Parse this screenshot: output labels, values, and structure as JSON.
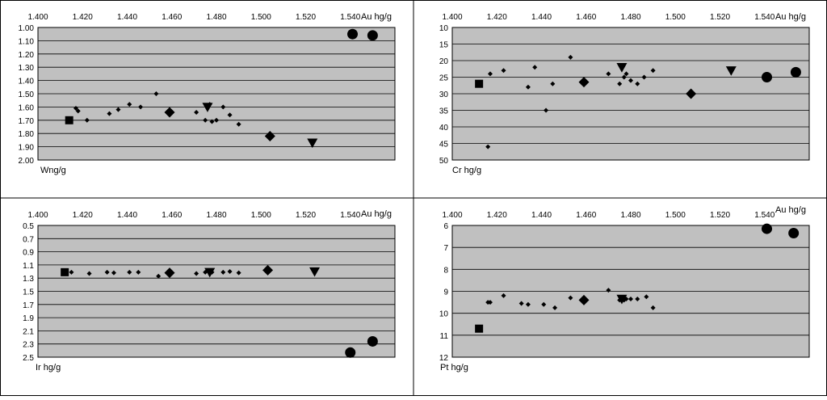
{
  "chart_data": [
    {
      "type": "scatter",
      "xlabel": "Au hg/g",
      "ylabel": "Wng/g",
      "xlim": [
        1.4,
        1.56
      ],
      "ylim": [
        1.0,
        2.0
      ],
      "y_reversed": true,
      "x_ticks": [
        "1.400",
        "1.420",
        "1.440",
        "1.460",
        "1.480",
        "1.500",
        "1.520",
        "1.540"
      ],
      "y_ticks": [
        "1.00",
        "1.10",
        "1.20",
        "1.30",
        "1.40",
        "1.50",
        "1.60",
        "1.70",
        "1.80",
        "1.90",
        "2.00"
      ],
      "grid": true,
      "series": [
        {
          "marker": "diamond-small",
          "points": [
            [
              1.417,
              1.61
            ],
            [
              1.418,
              1.63
            ],
            [
              1.422,
              1.7
            ],
            [
              1.432,
              1.65
            ],
            [
              1.436,
              1.62
            ],
            [
              1.441,
              1.58
            ],
            [
              1.446,
              1.6
            ],
            [
              1.453,
              1.5
            ],
            [
              1.471,
              1.64
            ],
            [
              1.475,
              1.7
            ],
            [
              1.477,
              1.58
            ],
            [
              1.478,
              1.71
            ],
            [
              1.48,
              1.7
            ],
            [
              1.483,
              1.6
            ],
            [
              1.486,
              1.66
            ],
            [
              1.49,
              1.73
            ]
          ]
        },
        {
          "marker": "square",
          "points": [
            [
              1.414,
              1.7
            ]
          ]
        },
        {
          "marker": "diamond-large",
          "points": [
            [
              1.459,
              1.64
            ],
            [
              1.504,
              1.82
            ]
          ]
        },
        {
          "marker": "triangle-down",
          "points": [
            [
              1.476,
              1.6
            ],
            [
              1.523,
              1.87
            ]
          ]
        },
        {
          "marker": "circle",
          "points": [
            [
              1.541,
              1.05
            ],
            [
              1.55,
              1.06
            ]
          ]
        }
      ]
    },
    {
      "type": "scatter",
      "xlabel": "Au hg/g",
      "ylabel": "Cr hg/g",
      "xlim": [
        1.4,
        1.56
      ],
      "ylim": [
        10,
        50
      ],
      "y_reversed": true,
      "x_ticks": [
        "1.400",
        "1.420",
        "1.440",
        "1.460",
        "1.480",
        "1.500",
        "1.520",
        "1.540"
      ],
      "y_ticks": [
        "10",
        "15",
        "20",
        "25",
        "30",
        "35",
        "40",
        "45",
        "50"
      ],
      "grid": true,
      "series": [
        {
          "marker": "diamond-small",
          "points": [
            [
              1.416,
              46
            ],
            [
              1.417,
              24
            ],
            [
              1.423,
              23
            ],
            [
              1.434,
              28
            ],
            [
              1.437,
              22
            ],
            [
              1.442,
              35
            ],
            [
              1.445,
              27
            ],
            [
              1.453,
              19
            ],
            [
              1.47,
              24
            ],
            [
              1.475,
              27
            ],
            [
              1.477,
              25
            ],
            [
              1.478,
              24
            ],
            [
              1.48,
              26
            ],
            [
              1.483,
              27
            ],
            [
              1.486,
              25
            ],
            [
              1.49,
              23
            ]
          ]
        },
        {
          "marker": "square",
          "points": [
            [
              1.412,
              27
            ]
          ]
        },
        {
          "marker": "diamond-large",
          "points": [
            [
              1.459,
              26.5
            ],
            [
              1.507,
              30
            ]
          ]
        },
        {
          "marker": "triangle-down",
          "points": [
            [
              1.476,
              22
            ],
            [
              1.525,
              23
            ]
          ]
        },
        {
          "marker": "circle",
          "points": [
            [
              1.541,
              25
            ],
            [
              1.554,
              23.5
            ]
          ]
        }
      ]
    },
    {
      "type": "scatter",
      "xlabel": "Au hg/g",
      "ylabel": "Ir hg/g",
      "xlim": [
        1.4,
        1.56
      ],
      "ylim": [
        0.5,
        2.5
      ],
      "y_reversed": true,
      "x_ticks": [
        "1.400",
        "1.420",
        "1.440",
        "1.460",
        "1.480",
        "1.500",
        "1.520",
        "1.540"
      ],
      "y_ticks": [
        "0.5",
        "0.7",
        "0.9",
        "1.1",
        "1.3",
        "1.5",
        "1.7",
        "1.9",
        "2.1",
        "2.3",
        "2.5"
      ],
      "grid": true,
      "series": [
        {
          "marker": "diamond-small",
          "points": [
            [
              1.415,
              1.21
            ],
            [
              1.423,
              1.23
            ],
            [
              1.431,
              1.21
            ],
            [
              1.434,
              1.22
            ],
            [
              1.441,
              1.21
            ],
            [
              1.445,
              1.21
            ],
            [
              1.454,
              1.27
            ],
            [
              1.471,
              1.23
            ],
            [
              1.475,
              1.21
            ],
            [
              1.477,
              1.22
            ],
            [
              1.478,
              1.21
            ],
            [
              1.483,
              1.21
            ],
            [
              1.486,
              1.2
            ],
            [
              1.49,
              1.22
            ]
          ]
        },
        {
          "marker": "square",
          "points": [
            [
              1.412,
              1.21
            ]
          ]
        },
        {
          "marker": "diamond-large",
          "points": [
            [
              1.459,
              1.22
            ],
            [
              1.503,
              1.18
            ]
          ]
        },
        {
          "marker": "triangle-down",
          "points": [
            [
              1.477,
              1.21
            ],
            [
              1.524,
              1.2
            ]
          ]
        },
        {
          "marker": "circle",
          "points": [
            [
              1.54,
              2.43
            ],
            [
              1.55,
              2.26
            ]
          ]
        }
      ]
    },
    {
      "type": "scatter",
      "xlabel": "Au hg/g",
      "ylabel": "Pt hg/g",
      "xlim": [
        1.4,
        1.56
      ],
      "ylim": [
        6,
        12
      ],
      "y_reversed": true,
      "x_ticks": [
        "1.400",
        "1.420",
        "1.440",
        "1.460",
        "1.480",
        "1.500",
        "1.520",
        "1.540"
      ],
      "y_ticks": [
        "6",
        "7",
        "8",
        "9",
        "10",
        "11",
        "12"
      ],
      "grid": true,
      "series": [
        {
          "marker": "diamond-small",
          "points": [
            [
              1.416,
              9.5
            ],
            [
              1.417,
              9.5
            ],
            [
              1.423,
              9.2
            ],
            [
              1.431,
              9.55
            ],
            [
              1.434,
              9.6
            ],
            [
              1.441,
              9.6
            ],
            [
              1.446,
              9.75
            ],
            [
              1.453,
              9.3
            ],
            [
              1.47,
              8.95
            ],
            [
              1.475,
              9.4
            ],
            [
              1.477,
              9.4
            ],
            [
              1.478,
              9.35
            ],
            [
              1.48,
              9.35
            ],
            [
              1.483,
              9.35
            ],
            [
              1.487,
              9.25
            ],
            [
              1.49,
              9.75
            ]
          ]
        },
        {
          "marker": "square",
          "points": [
            [
              1.412,
              10.7
            ]
          ]
        },
        {
          "marker": "diamond-large",
          "points": [
            [
              1.459,
              9.4
            ]
          ]
        },
        {
          "marker": "triangle-down",
          "points": [
            [
              1.476,
              9.35
            ]
          ]
        },
        {
          "marker": "circle",
          "points": [
            [
              1.541,
              6.15
            ],
            [
              1.553,
              6.35
            ]
          ]
        }
      ]
    }
  ]
}
